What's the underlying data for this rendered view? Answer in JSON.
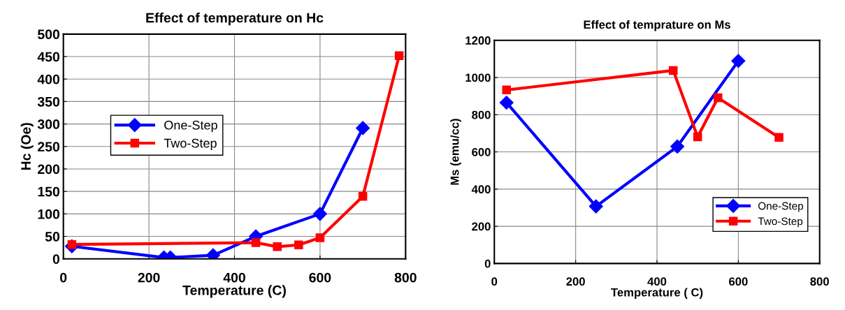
{
  "chart_data": [
    {
      "type": "line",
      "title": "Effect of temperature on Hc",
      "xlabel": "Temperature (C)",
      "ylabel": "Hc (Oe)",
      "xlim": [
        0,
        800
      ],
      "xticks": [
        0,
        200,
        400,
        600,
        800
      ],
      "ylim": [
        0,
        500
      ],
      "yticks": [
        0,
        50,
        100,
        150,
        200,
        250,
        300,
        350,
        400,
        450,
        500
      ],
      "grid": true,
      "legend": "center left",
      "series": [
        {
          "name": "One-Step",
          "color": "#0000ff",
          "marker": "diamond",
          "x": [
            20,
            235,
            250,
            350,
            450,
            600,
            700
          ],
          "values": [
            28,
            3,
            3,
            8,
            50,
            100,
            291
          ]
        },
        {
          "name": "Two-Step",
          "color": "#ff0000",
          "marker": "square",
          "x": [
            20,
            450,
            500,
            550,
            600,
            700,
            785
          ],
          "values": [
            32,
            36,
            27,
            31,
            47,
            139,
            452
          ]
        }
      ]
    },
    {
      "type": "line",
      "title": "Effect of temprature on Ms",
      "xlabel": "Temperature ( C)",
      "ylabel": "Ms (emu/cc)",
      "xlim": [
        0,
        800
      ],
      "xticks": [
        0,
        200,
        400,
        600,
        800
      ],
      "ylim": [
        0,
        1200
      ],
      "yticks": [
        0,
        200,
        400,
        600,
        800,
        1000,
        1200
      ],
      "grid": true,
      "legend": "bottom right",
      "series": [
        {
          "name": "One-Step",
          "color": "#0000ff",
          "marker": "diamond",
          "x": [
            30,
            250,
            450,
            600
          ],
          "values": [
            865,
            307,
            629,
            1089
          ]
        },
        {
          "name": "Two-Step",
          "color": "#ff0000",
          "marker": "square",
          "x": [
            30,
            440,
            500,
            550,
            700
          ],
          "values": [
            933,
            1038,
            681,
            891,
            678
          ]
        }
      ]
    }
  ]
}
